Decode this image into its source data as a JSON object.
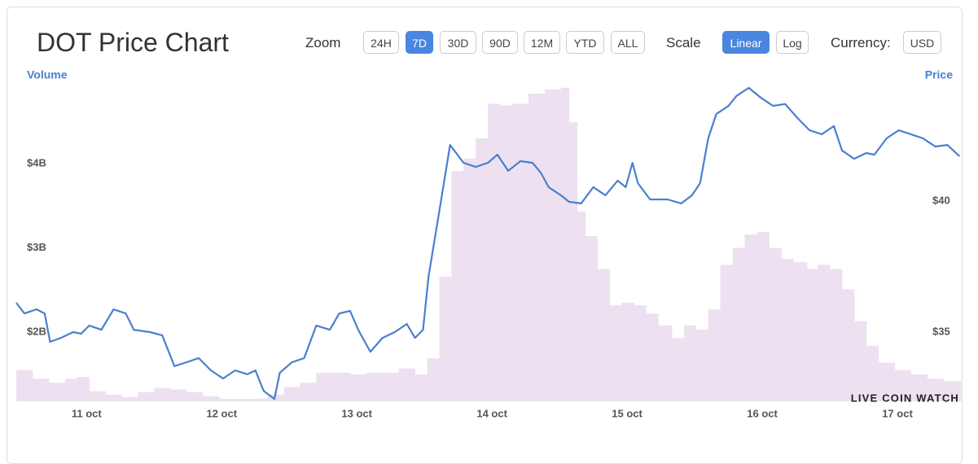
{
  "header": {
    "title": "DOT Price Chart",
    "zoom_label": "Zoom",
    "zoom_options": [
      {
        "label": "24H",
        "active": false
      },
      {
        "label": "7D",
        "active": true
      },
      {
        "label": "30D",
        "active": false
      },
      {
        "label": "90D",
        "active": false
      },
      {
        "label": "12M",
        "active": false
      },
      {
        "label": "YTD",
        "active": false
      },
      {
        "label": "ALL",
        "active": false
      }
    ],
    "scale_label": "Scale",
    "scale_options": [
      {
        "label": "Linear",
        "active": true
      },
      {
        "label": "Log",
        "active": false
      }
    ],
    "currency_label": "Currency:",
    "currency": "USD"
  },
  "chart_data": {
    "type": "line",
    "y_label": "Volume",
    "y2_label": "Price",
    "watermark": "LIVE COIN WATCH",
    "grid": false,
    "xlim": [
      10.48,
      17.47
    ],
    "xticks": [
      {
        "value": 11,
        "label": "11 oct"
      },
      {
        "value": 12,
        "label": "12 oct"
      },
      {
        "value": 13,
        "label": "13 oct"
      },
      {
        "value": 14,
        "label": "14 oct"
      },
      {
        "value": 15,
        "label": "15 oct"
      },
      {
        "value": 16,
        "label": "16 oct"
      },
      {
        "value": 17,
        "label": "17 oct"
      }
    ],
    "ylim": [
      1.18,
      5.12
    ],
    "yticks": [
      {
        "value": 2,
        "label": "$2B"
      },
      {
        "value": 3,
        "label": "$3B"
      },
      {
        "value": 4,
        "label": "$4B"
      }
    ],
    "y2lim": [
      32.36,
      45.03
    ],
    "y2ticks": [
      {
        "value": 35,
        "label": "$35"
      },
      {
        "value": 40,
        "label": "$40"
      }
    ],
    "series": [
      {
        "type": "bar",
        "axis": "y",
        "color": "#ede1f1",
        "x": [
          10.48,
          10.6,
          10.72,
          10.84,
          10.93,
          11.02,
          11.14,
          11.26,
          11.38,
          11.5,
          11.62,
          11.74,
          11.86,
          11.98,
          12.1,
          12.22,
          12.34,
          12.46,
          12.58,
          12.7,
          12.83,
          12.95,
          13.07,
          13.19,
          13.31,
          13.43,
          13.52,
          13.61,
          13.7,
          13.79,
          13.88,
          13.97,
          14.06,
          14.15,
          14.27,
          14.39,
          14.51,
          14.57,
          14.63,
          14.69,
          14.78,
          14.87,
          14.96,
          15.05,
          15.14,
          15.23,
          15.33,
          15.42,
          15.51,
          15.6,
          15.69,
          15.78,
          15.87,
          15.96,
          16.05,
          16.14,
          16.23,
          16.33,
          16.41,
          16.5,
          16.59,
          16.68,
          16.77,
          16.86,
          16.98,
          17.1,
          17.22,
          17.34
        ],
        "values": [
          1.55,
          1.45,
          1.4,
          1.45,
          1.47,
          1.3,
          1.26,
          1.23,
          1.29,
          1.34,
          1.32,
          1.29,
          1.24,
          1.21,
          1.21,
          1.21,
          1.26,
          1.35,
          1.4,
          1.52,
          1.52,
          1.5,
          1.52,
          1.52,
          1.57,
          1.5,
          1.69,
          2.66,
          3.91,
          4.06,
          4.3,
          4.71,
          4.69,
          4.71,
          4.83,
          4.88,
          4.9,
          4.49,
          3.43,
          3.14,
          2.75,
          2.32,
          2.35,
          2.32,
          2.22,
          2.08,
          1.93,
          2.08,
          2.03,
          2.27,
          2.8,
          3.0,
          3.16,
          3.19,
          3.0,
          2.87,
          2.83,
          2.75,
          2.8,
          2.75,
          2.51,
          2.13,
          1.84,
          1.64,
          1.55,
          1.5,
          1.45,
          1.42
        ]
      },
      {
        "type": "line",
        "axis": "y2",
        "color": "#4a7fcf",
        "x": [
          10.48,
          10.54,
          10.63,
          10.69,
          10.73,
          10.81,
          10.9,
          10.96,
          11.02,
          11.11,
          11.2,
          11.29,
          11.35,
          11.47,
          11.56,
          11.65,
          11.74,
          11.83,
          11.92,
          12.01,
          12.1,
          12.19,
          12.25,
          12.31,
          12.39,
          12.43,
          12.52,
          12.61,
          12.7,
          12.8,
          12.87,
          12.95,
          13.01,
          13.1,
          13.19,
          13.28,
          13.37,
          13.43,
          13.49,
          13.53,
          13.61,
          13.69,
          13.79,
          13.88,
          13.97,
          14.04,
          14.12,
          14.21,
          14.3,
          14.36,
          14.42,
          14.51,
          14.57,
          14.66,
          14.75,
          14.84,
          14.93,
          14.99,
          15.04,
          15.08,
          15.17,
          15.3,
          15.4,
          15.48,
          15.54,
          15.6,
          15.66,
          15.75,
          15.81,
          15.9,
          15.99,
          16.08,
          16.17,
          16.26,
          16.35,
          16.44,
          16.53,
          16.59,
          16.68,
          16.77,
          16.83,
          16.92,
          17.01,
          17.1,
          17.19,
          17.28,
          17.37,
          17.46
        ],
        "values": [
          36.12,
          35.71,
          35.87,
          35.71,
          34.63,
          34.78,
          35.0,
          34.94,
          35.25,
          35.09,
          35.87,
          35.71,
          35.09,
          35.0,
          34.88,
          33.7,
          33.85,
          34.01,
          33.54,
          33.23,
          33.54,
          33.39,
          33.54,
          32.76,
          32.45,
          33.45,
          33.85,
          34.01,
          35.25,
          35.09,
          35.71,
          35.81,
          35.09,
          34.25,
          34.78,
          35.0,
          35.31,
          34.78,
          35.09,
          37.11,
          39.6,
          42.14,
          41.46,
          41.3,
          41.46,
          41.77,
          41.15,
          41.52,
          41.46,
          41.09,
          40.53,
          40.22,
          39.97,
          39.91,
          40.53,
          40.22,
          40.78,
          40.53,
          41.46,
          40.68,
          40.06,
          40.06,
          39.91,
          40.22,
          40.68,
          42.39,
          43.32,
          43.63,
          44.01,
          44.32,
          43.94,
          43.63,
          43.7,
          43.17,
          42.7,
          42.55,
          42.86,
          41.93,
          41.61,
          41.83,
          41.77,
          42.39,
          42.7,
          42.55,
          42.39,
          42.08,
          42.14,
          41.71
        ]
      }
    ]
  }
}
